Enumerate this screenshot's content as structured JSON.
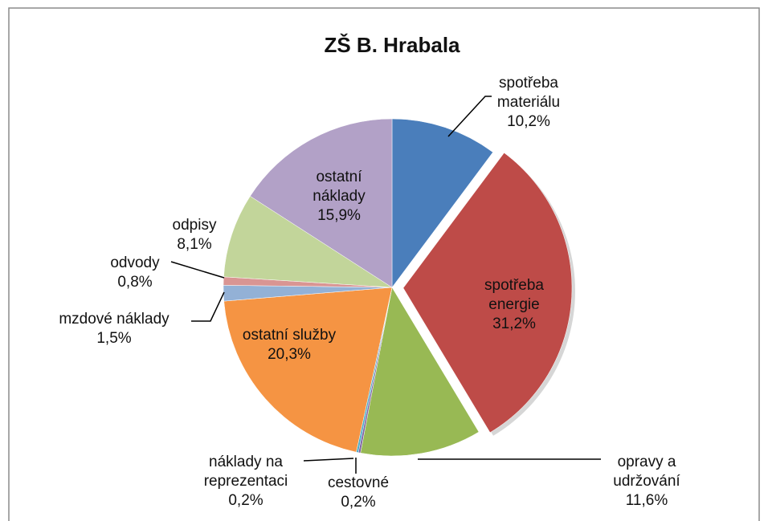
{
  "chart_data": {
    "type": "pie",
    "title": "ZŠ B. Hrabala",
    "categories": [
      "spotřeba materiálu",
      "spotřeba energie",
      "opravy a udržování",
      "cestovné",
      "náklady na reprezentaci",
      "ostatní služby",
      "mzdové náklady",
      "odvody",
      "odpisy",
      "ostatní náklady"
    ],
    "values": [
      10.2,
      31.2,
      11.6,
      0.2,
      0.2,
      20.3,
      1.5,
      0.8,
      8.1,
      15.9
    ],
    "value_labels": [
      "10,2%",
      "31,2%",
      "11,6%",
      "0,2%",
      "0,2%",
      "20,3%",
      "1,5%",
      "0,8%",
      "8,1%",
      "15,9%"
    ],
    "colors": [
      "#4a7ebb",
      "#be4b48",
      "#98b954",
      "#7e62a1",
      "#4bacc6",
      "#f59443",
      "#93b1d6",
      "#d99593",
      "#c2d59a",
      "#b2a1c7"
    ]
  }
}
